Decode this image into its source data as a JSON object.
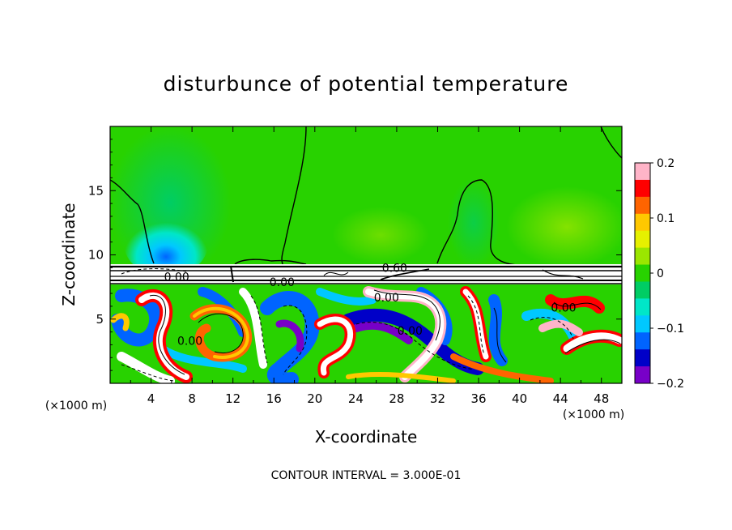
{
  "chart_data": {
    "type": "heatmap",
    "title": "disturbunce of potential temperature",
    "xlabel": "X-coordinate",
    "ylabel": "Z-coordinate",
    "x_unit_left": "(×1000 m)",
    "x_unit_right": "(×1000 m)",
    "xlim": [
      0,
      50
    ],
    "ylim": [
      0,
      20
    ],
    "x_ticks": [
      4,
      8,
      12,
      16,
      20,
      24,
      28,
      32,
      36,
      40,
      44,
      48
    ],
    "y_ticks": [
      5,
      10,
      15
    ],
    "colorbar": {
      "min": -0.2,
      "max": 0.2,
      "tick_labels": [
        "0.2",
        "0.1",
        "0",
        "−0.1",
        "−0.2"
      ],
      "tick_values": [
        0.2,
        0.1,
        0,
        -0.1,
        -0.2
      ],
      "colors": [
        "#ffb4c8",
        "#ff0000",
        "#ff6400",
        "#ffc800",
        "#e6f000",
        "#9be600",
        "#28d200",
        "#00cd64",
        "#00e6c8",
        "#00c8ff",
        "#0064ff",
        "#0000c8",
        "#7800c8"
      ]
    },
    "contour_labels": [
      {
        "text": "0.00",
        "x": 6.5,
        "z": 8.3
      },
      {
        "text": "0.00",
        "x": 16.8,
        "z": 7.9
      },
      {
        "text": "0.60",
        "x": 27.8,
        "z": 9.0
      },
      {
        "text": "0.00",
        "x": 27.0,
        "z": 6.7
      },
      {
        "text": "0.00",
        "x": 29.3,
        "z": 4.1
      },
      {
        "text": "0.00",
        "x": 44.3,
        "z": 5.9
      },
      {
        "text": "0.00",
        "x": 7.8,
        "z": 3.3
      }
    ],
    "footer": "CONTOUR INTERVAL = 3.000E-01"
  }
}
